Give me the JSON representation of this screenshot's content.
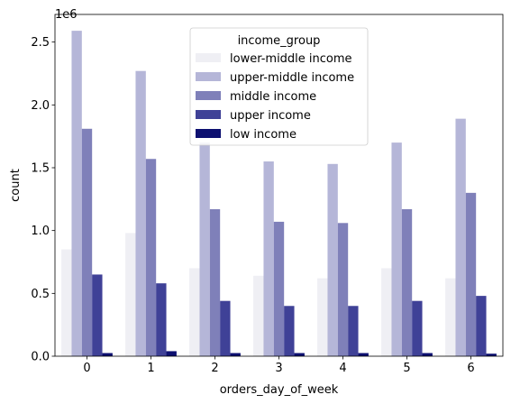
{
  "chart_data": {
    "type": "bar",
    "xlabel": "orders_day_of_week",
    "ylabel": "count",
    "offset_label": "1e6",
    "categories": [
      "0",
      "1",
      "2",
      "3",
      "4",
      "5",
      "6"
    ],
    "ylim": [
      0,
      2.72
    ],
    "y_ticks": [
      0.0,
      0.5,
      1.0,
      1.5,
      2.0,
      2.5
    ],
    "y_tick_labels": [
      "0.0",
      "0.5",
      "1.0",
      "1.5",
      "2.0",
      "2.5"
    ],
    "y_unit_multiplier": 1000000,
    "grid": false,
    "legend": {
      "title": "income_group",
      "placement": "upper center"
    },
    "series": [
      {
        "name": "lower-middle income",
        "color": "#efeff4",
        "values": [
          0.85,
          0.98,
          0.7,
          0.64,
          0.62,
          0.7,
          0.62
        ]
      },
      {
        "name": "upper-middle income",
        "color": "#b5b6d8",
        "values": [
          2.59,
          2.27,
          1.7,
          1.55,
          1.53,
          1.7,
          1.89
        ]
      },
      {
        "name": "middle income",
        "color": "#7f80b9",
        "values": [
          1.81,
          1.57,
          1.17,
          1.07,
          1.06,
          1.17,
          1.3
        ]
      },
      {
        "name": "upper income",
        "color": "#3f4197",
        "values": [
          0.65,
          0.58,
          0.44,
          0.4,
          0.4,
          0.44,
          0.48
        ]
      },
      {
        "name": "low income",
        "color": "#0d1070",
        "values": [
          0.025,
          0.04,
          0.025,
          0.025,
          0.025,
          0.025,
          0.02
        ]
      }
    ]
  }
}
